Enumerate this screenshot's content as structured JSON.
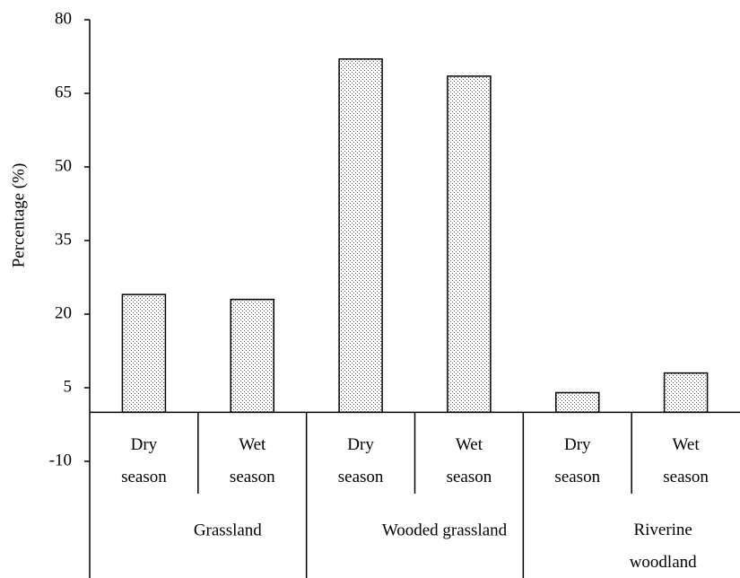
{
  "chart_data": {
    "type": "bar",
    "y_label": "Percentage (%)",
    "categories": [
      "Dry season",
      "Wet season",
      "Dry season",
      "Wet season",
      "Dry season",
      "Wet season"
    ],
    "groups": [
      "Grassland",
      "Wooded grassland",
      "Riverine woodland"
    ],
    "values": [
      24,
      23,
      72,
      68.5,
      4,
      8
    ],
    "ylim": [
      -10,
      80
    ],
    "yticks": [
      80,
      65,
      50,
      35,
      20,
      5,
      -10
    ],
    "color": "#ffffff",
    "grid": false
  }
}
